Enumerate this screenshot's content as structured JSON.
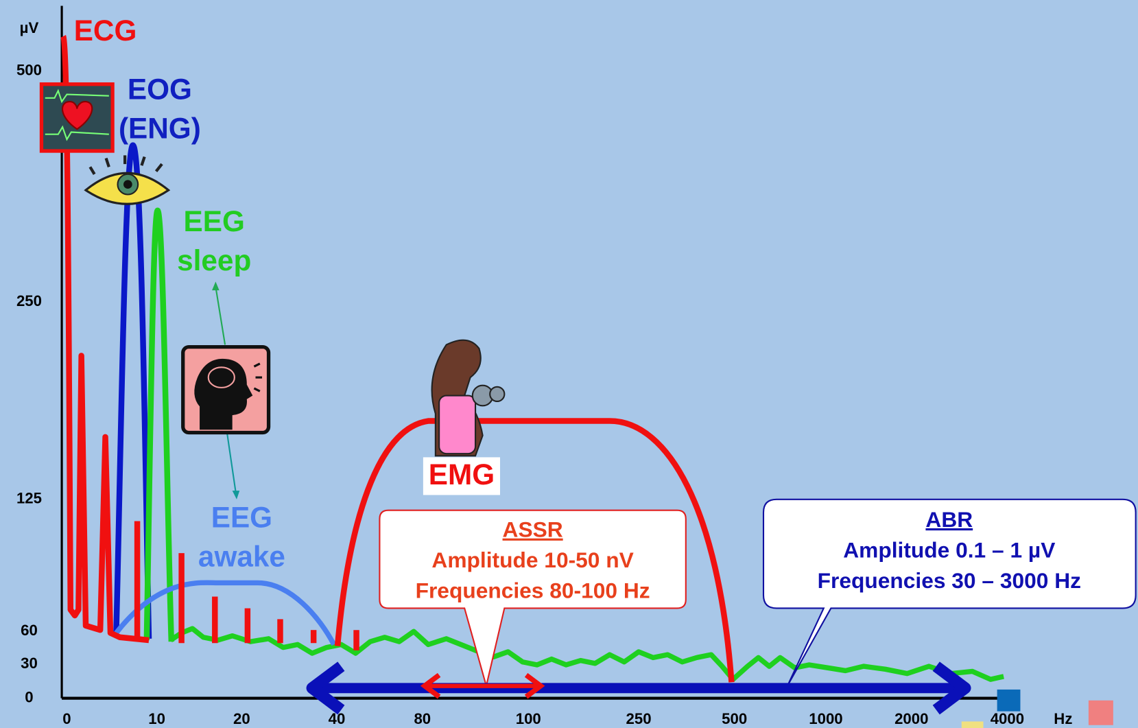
{
  "axes": {
    "y_unit": "µV",
    "y_labels": [
      500,
      250,
      125,
      60,
      30,
      0
    ],
    "x_labels": [
      0,
      10,
      20,
      40,
      80,
      100,
      250,
      500,
      1000,
      2000,
      4000
    ],
    "x_unit": "Hz"
  },
  "labels": {
    "ecg": "ECG",
    "eog": [
      "EOG",
      "(ENG)"
    ],
    "eeg_sleep": [
      "EEG",
      "sleep"
    ],
    "eeg_awake": [
      "EEG",
      "awake"
    ],
    "emg": "EMG"
  },
  "callouts": [
    {
      "title": "ASSR",
      "lines": [
        "Amplitude 10-50 nV",
        "Frequencies 80-100 Hz"
      ]
    },
    {
      "title": "ABR",
      "lines": [
        "Amplitude 0.1 – 1 µV",
        "Frequencies 30 – 3000 Hz"
      ]
    }
  ]
}
